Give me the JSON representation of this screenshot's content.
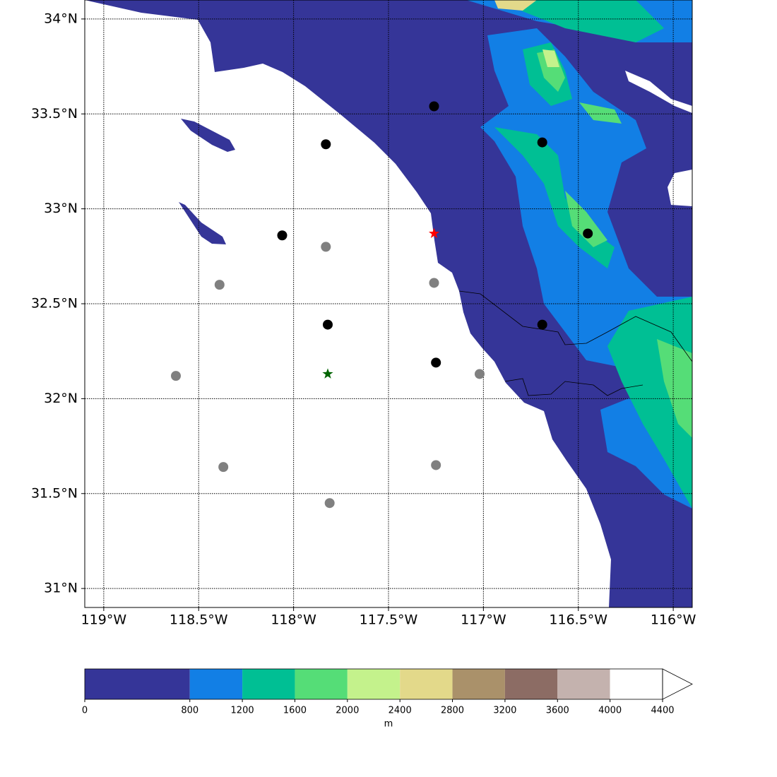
{
  "map": {
    "xlim": [
      -119.1,
      -115.9
    ],
    "ylim": [
      30.9,
      34.1
    ],
    "xticks": [
      {
        "value": -119,
        "label": "119°W"
      },
      {
        "value": -118.5,
        "label": "118.5°W"
      },
      {
        "value": -118,
        "label": "118°W"
      },
      {
        "value": -117.5,
        "label": "117.5°W"
      },
      {
        "value": -117,
        "label": "117°W"
      },
      {
        "value": -116.5,
        "label": "116.5°W"
      },
      {
        "value": -116,
        "label": "116°W"
      }
    ],
    "yticks": [
      {
        "value": 31,
        "label": "31°N"
      },
      {
        "value": 31.5,
        "label": "31.5°N"
      },
      {
        "value": 32,
        "label": "32°N"
      },
      {
        "value": 32.5,
        "label": "32.5°N"
      },
      {
        "value": 33,
        "label": "33°N"
      },
      {
        "value": 33.5,
        "label": "33.5°N"
      },
      {
        "value": 34,
        "label": "34°N"
      }
    ],
    "grid": true,
    "points": [
      {
        "marker": "circle",
        "color": "#000000",
        "lon": [
          -117.26,
          -117.83,
          -116.69,
          -118.06,
          -116.45,
          -117.82,
          -116.69,
          -117.25
        ],
        "lat": [
          33.54,
          33.34,
          33.35,
          32.86,
          32.87,
          32.39,
          32.39,
          32.19
        ]
      },
      {
        "marker": "circle",
        "color": "#808080",
        "lon": [
          -117.83,
          -118.39,
          -117.26,
          -118.62,
          -117.02,
          -118.37,
          -117.25,
          -117.81
        ],
        "lat": [
          32.8,
          32.6,
          32.61,
          32.12,
          32.13,
          31.64,
          31.65,
          31.45
        ]
      },
      {
        "marker": "star",
        "color": "#ff0000",
        "lon": [
          -117.26
        ],
        "lat": [
          32.87
        ]
      },
      {
        "marker": "star",
        "color": "#006400",
        "lon": [
          -117.82
        ],
        "lat": [
          32.13
        ]
      }
    ]
  },
  "colorbar": {
    "label": "m",
    "levels": [
      0,
      800,
      1200,
      1600,
      2000,
      2400,
      2800,
      3200,
      3600,
      4000,
      4400
    ],
    "colors": [
      "#353598",
      "#127fe5",
      "#00bf94",
      "#55dd77",
      "#c4f28c",
      "#e3d98a",
      "#aa916a",
      "#8c6c64",
      "#c4b2ae",
      "#ffffff"
    ],
    "extend": "max"
  }
}
